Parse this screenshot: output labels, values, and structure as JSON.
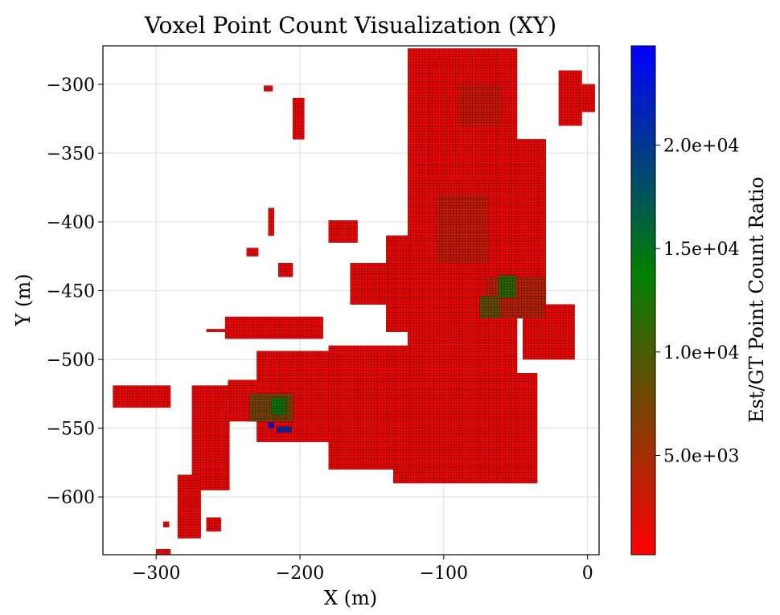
{
  "chart_data": {
    "type": "heatmap",
    "title": "Voxel Point Count Visualization (XY)",
    "xlabel": "X (m)",
    "ylabel": "Y (m)",
    "xlim": [
      -337,
      8
    ],
    "ylim": [
      -642,
      -272
    ],
    "x_ticks": [
      -300,
      -200,
      -100,
      0
    ],
    "x_tick_labels": [
      "−300",
      "−200",
      "−100",
      "0"
    ],
    "y_ticks": [
      -300,
      -350,
      -400,
      -450,
      -500,
      -550,
      -600
    ],
    "y_tick_labels": [
      "−300",
      "−350",
      "−400",
      "−450",
      "−500",
      "−550",
      "−600"
    ],
    "grid": true,
    "voxel_size": 2,
    "colorbar": {
      "label": "Est/GT Point Count Ratio",
      "vmin": 200,
      "vmax": 24800,
      "ticks": [
        5000,
        10000,
        15000,
        20000
      ],
      "tick_labels": [
        "5.0e+03",
        "1.0e+04",
        "1.5e+04",
        "2.0e+04"
      ],
      "colors": [
        "#ff0000",
        "#008000",
        "#0000ff"
      ]
    },
    "regions": [
      {
        "shape": "rect",
        "x": [
          -125,
          -50
        ],
        "y": [
          -510,
          -275
        ],
        "value": 400
      },
      {
        "shape": "rect",
        "x": [
          -110,
          -65
        ],
        "y": [
          -370,
          -280
        ],
        "value": 400
      },
      {
        "shape": "rect",
        "x": [
          -55,
          -30
        ],
        "y": [
          -470,
          -340
        ],
        "value": 400
      },
      {
        "shape": "rect",
        "x": [
          -135,
          -35
        ],
        "y": [
          -590,
          -510
        ],
        "value": 400
      },
      {
        "shape": "rect",
        "x": [
          -180,
          -125
        ],
        "y": [
          -580,
          -490
        ],
        "value": 400
      },
      {
        "shape": "rect",
        "x": [
          -230,
          -180
        ],
        "y": [
          -560,
          -495
        ],
        "value": 400
      },
      {
        "shape": "rect",
        "x": [
          -250,
          -230
        ],
        "y": [
          -545,
          -515
        ],
        "value": 400
      },
      {
        "shape": "rect",
        "x": [
          -45,
          -10
        ],
        "y": [
          -500,
          -460
        ],
        "value": 400
      },
      {
        "shape": "rect",
        "x": [
          -70,
          -30
        ],
        "y": [
          -470,
          -440
        ],
        "value": 3500
      },
      {
        "shape": "rect",
        "x": [
          -105,
          -70
        ],
        "y": [
          -430,
          -380
        ],
        "value": 2500
      },
      {
        "shape": "rect",
        "x": [
          -90,
          -60
        ],
        "y": [
          -330,
          -300
        ],
        "value": 2200
      },
      {
        "shape": "rect",
        "x": [
          -62,
          -50
        ],
        "y": [
          -455,
          -440
        ],
        "value": 11000
      },
      {
        "shape": "rect",
        "x": [
          -75,
          -62
        ],
        "y": [
          -470,
          -455
        ],
        "value": 8000
      },
      {
        "shape": "rect",
        "x": [
          -235,
          -205
        ],
        "y": [
          -545,
          -525
        ],
        "value": 7000
      },
      {
        "shape": "rect",
        "x": [
          -220,
          -210
        ],
        "y": [
          -540,
          -528
        ],
        "value": 13000
      },
      {
        "shape": "rect",
        "x": [
          -222,
          -218
        ],
        "y": [
          -550,
          -546
        ],
        "value": 24000
      },
      {
        "shape": "rect",
        "x": [
          -216,
          -206
        ],
        "y": [
          -553,
          -550
        ],
        "value": 21000
      },
      {
        "shape": "rect",
        "x": [
          -275,
          -250
        ],
        "y": [
          -595,
          -520
        ],
        "value": 400
      },
      {
        "shape": "rect",
        "x": [
          -285,
          -270
        ],
        "y": [
          -630,
          -585
        ],
        "value": 400
      },
      {
        "shape": "rect",
        "x": [
          -330,
          -290
        ],
        "y": [
          -535,
          -520
        ],
        "value": 400
      },
      {
        "shape": "rect",
        "x": [
          -252,
          -185
        ],
        "y": [
          -485,
          -470
        ],
        "value": 400
      },
      {
        "shape": "line",
        "x": [
          -265,
          -250
        ],
        "y": [
          -480,
          -480
        ],
        "value": 400
      },
      {
        "shape": "rect",
        "x": [
          -215,
          -205
        ],
        "y": [
          -440,
          -430
        ],
        "value": 400
      },
      {
        "shape": "rect",
        "x": [
          -205,
          -198
        ],
        "y": [
          -340,
          -310
        ],
        "value": 400
      },
      {
        "shape": "rect",
        "x": [
          -225,
          -220
        ],
        "y": [
          -305,
          -302
        ],
        "value": 400
      },
      {
        "shape": "rect",
        "x": [
          -222,
          -218
        ],
        "y": [
          -410,
          -390
        ],
        "value": 400
      },
      {
        "shape": "rect",
        "x": [
          -237,
          -230
        ],
        "y": [
          -425,
          -420
        ],
        "value": 400
      },
      {
        "shape": "rect",
        "x": [
          -140,
          -125
        ],
        "y": [
          -480,
          -410
        ],
        "value": 400
      },
      {
        "shape": "rect",
        "x": [
          -165,
          -140
        ],
        "y": [
          -460,
          -430
        ],
        "value": 400
      },
      {
        "shape": "rect",
        "x": [
          -295,
          -292
        ],
        "y": [
          -622,
          -618
        ],
        "value": 400
      },
      {
        "shape": "rect",
        "x": [
          -300,
          -290
        ],
        "y": [
          -642,
          -638
        ],
        "value": 400
      },
      {
        "shape": "rect",
        "x": [
          -265,
          -255
        ],
        "y": [
          -625,
          -615
        ],
        "value": 400
      },
      {
        "shape": "rect",
        "x": [
          -20,
          -5
        ],
        "y": [
          -330,
          -290
        ],
        "value": 400
      },
      {
        "shape": "rect",
        "x": [
          -5,
          5
        ],
        "y": [
          -320,
          -300
        ],
        "value": 400
      },
      {
        "shape": "rect",
        "x": [
          -180,
          -160
        ],
        "y": [
          -415,
          -400
        ],
        "value": 400
      }
    ]
  }
}
